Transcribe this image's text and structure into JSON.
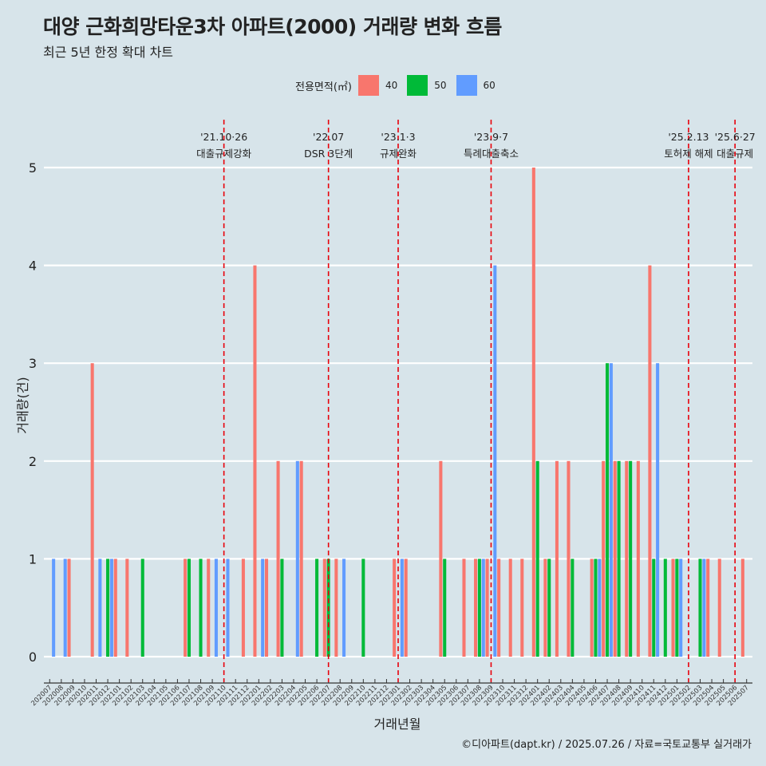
{
  "title": "대양 근화희망타운3차 아파트(2000) 거래량 변화 흐름",
  "subtitle": "최근 5년 한정 확대 차트",
  "caption": "©디아파트(dapt.kr) / 2025.07.26 / 자료=국토교통부 실거래가",
  "legend": {
    "title": "전용면적(㎡)",
    "items": [
      {
        "label": "40",
        "color": "#f8766d"
      },
      {
        "label": "50",
        "color": "#00ba38"
      },
      {
        "label": "60",
        "color": "#619cff"
      }
    ]
  },
  "chart_data": {
    "type": "bar",
    "xlabel": "거래년월",
    "ylabel": "거래량(건)",
    "ylim": [
      0,
      5
    ],
    "yticks": [
      0,
      1,
      2,
      3,
      4,
      5
    ],
    "grid": true,
    "legend_position": "top",
    "categories": [
      "202007",
      "202008",
      "202009",
      "202010",
      "202011",
      "202012",
      "202101",
      "202102",
      "202103",
      "202104",
      "202105",
      "202106",
      "202107",
      "202108",
      "202109",
      "202110",
      "202111",
      "202112",
      "202201",
      "202202",
      "202203",
      "202204",
      "202205",
      "202206",
      "202207",
      "202208",
      "202209",
      "202210",
      "202211",
      "202212",
      "202301",
      "202302",
      "202303",
      "202304",
      "202305",
      "202306",
      "202307",
      "202308",
      "202309",
      "202310",
      "202311",
      "202312",
      "202401",
      "202402",
      "202403",
      "202404",
      "202405",
      "202406",
      "202407",
      "202408",
      "202409",
      "202410",
      "202411",
      "202412",
      "202501",
      "202502",
      "202503",
      "202504",
      "202505",
      "202506",
      "202507"
    ],
    "series": [
      {
        "name": "40",
        "color": "#f8766d",
        "values": [
          0,
          0,
          1,
          0,
          3,
          0,
          1,
          1,
          0,
          0,
          0,
          0,
          1,
          0,
          1,
          0,
          0,
          1,
          4,
          1,
          2,
          0,
          2,
          0,
          1,
          1,
          0,
          0,
          0,
          0,
          1,
          1,
          0,
          0,
          2,
          0,
          1,
          1,
          1,
          1,
          1,
          1,
          5,
          1,
          2,
          2,
          0,
          1,
          2,
          2,
          2,
          2,
          4,
          0,
          1,
          0,
          0,
          1,
          1,
          0,
          1
        ]
      },
      {
        "name": "50",
        "color": "#00ba38",
        "values": [
          0,
          0,
          0,
          0,
          0,
          1,
          0,
          0,
          1,
          0,
          0,
          0,
          1,
          1,
          0,
          0,
          0,
          0,
          0,
          0,
          1,
          0,
          0,
          1,
          1,
          0,
          0,
          1,
          0,
          0,
          0,
          0,
          0,
          0,
          1,
          0,
          0,
          1,
          0,
          0,
          0,
          0,
          2,
          1,
          0,
          1,
          0,
          1,
          3,
          2,
          2,
          0,
          1,
          1,
          1,
          0,
          1,
          0,
          0,
          0,
          0
        ]
      },
      {
        "name": "60",
        "color": "#619cff",
        "values": [
          1,
          1,
          0,
          0,
          1,
          1,
          0,
          0,
          0,
          0,
          0,
          0,
          0,
          0,
          1,
          1,
          0,
          0,
          1,
          0,
          0,
          2,
          0,
          0,
          0,
          1,
          0,
          0,
          0,
          0,
          1,
          0,
          0,
          0,
          0,
          0,
          0,
          1,
          4,
          0,
          0,
          0,
          0,
          0,
          0,
          0,
          0,
          1,
          3,
          0,
          0,
          0,
          3,
          0,
          1,
          0,
          1,
          0,
          0,
          0,
          0
        ]
      }
    ],
    "annotations": [
      {
        "date": "202110",
        "label_top": "'21.10·26",
        "label_bottom": "대출규제강화"
      },
      {
        "date": "202207",
        "label_top": "'22.07",
        "label_bottom": "DSR 3단계"
      },
      {
        "date": "202301",
        "label_top": "'23.1·3",
        "label_bottom": "규제완화"
      },
      {
        "date": "202309",
        "label_top": "'23.9·7",
        "label_bottom": "특례대출축소"
      },
      {
        "date": "202502",
        "label_top": "'25.2.13",
        "label_bottom": "토허제 해제"
      },
      {
        "date": "202506",
        "label_top": "'25.6·27",
        "label_bottom": "대출규제"
      }
    ]
  }
}
